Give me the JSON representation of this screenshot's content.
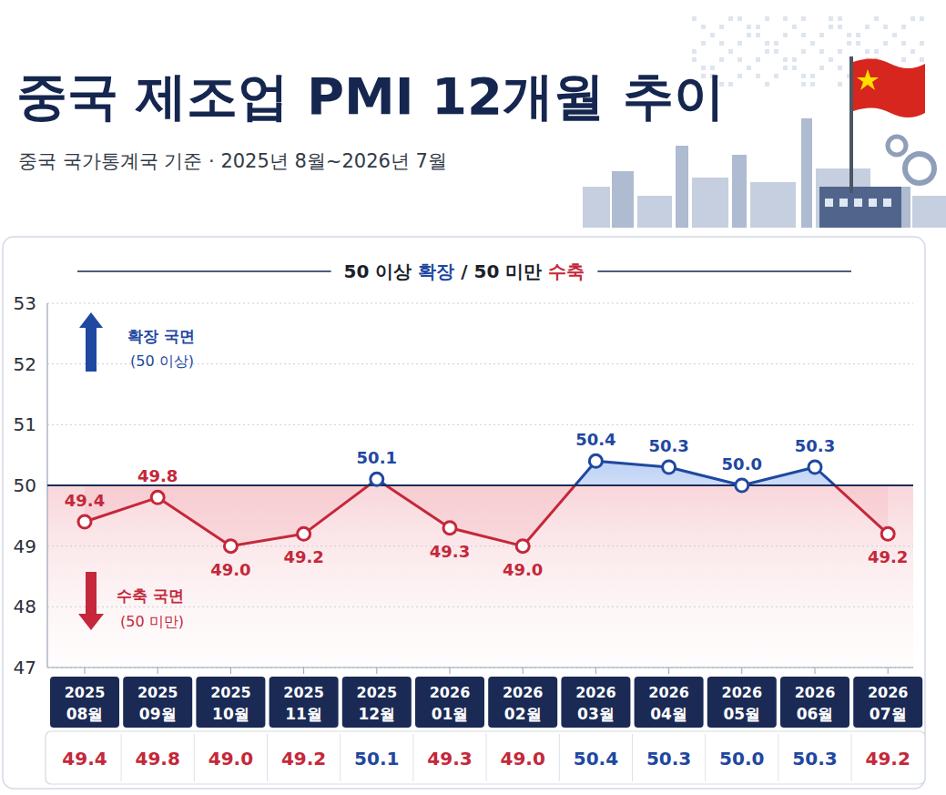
{
  "chart_data": {
    "type": "line",
    "title": "중국 제조업 PMI 12개월 추이",
    "subtitle": "중국 국가통계국 기준 · 2025년 8월~2026년 7월",
    "note_parts": [
      "50 이상 ",
      "확장",
      " / 50 미만 ",
      "수축"
    ],
    "annotations": [
      "확장 국면",
      "(50 이상)",
      "수축 국면",
      "(50 미만)"
    ],
    "categories": [
      "2025 08월",
      "2025 09월",
      "2025 10월",
      "2025 11월",
      "2025 12월",
      "2026 01월",
      "2026 02월",
      "2026 03월",
      "2026 04월",
      "2026 05월",
      "2026 06월",
      "2026 07월"
    ],
    "values": [
      49.4,
      49.8,
      49.0,
      49.2,
      50.1,
      49.3,
      49.0,
      50.4,
      50.3,
      50.0,
      50.3,
      49.2
    ],
    "value_labels": [
      "49.4",
      "49.8",
      "49.0",
      "49.2",
      "50.1",
      "49.3",
      "49.0",
      "50.4",
      "50.3",
      "50.0",
      "50.3",
      "49.2"
    ],
    "threshold": 50,
    "ylim": [
      47,
      53
    ],
    "yticks": [
      47,
      48,
      49,
      50,
      51,
      52,
      53
    ],
    "grid": true,
    "data_labels": true,
    "marker": "circle"
  }
}
